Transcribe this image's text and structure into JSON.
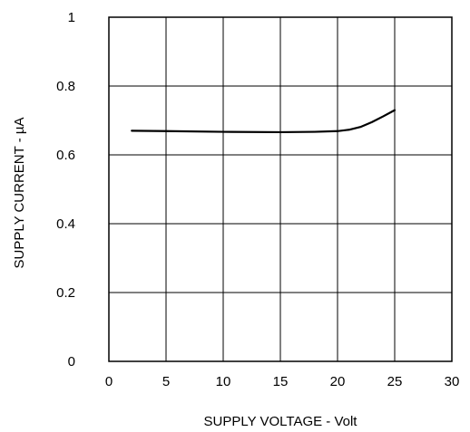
{
  "chart_data": {
    "type": "line",
    "title": "",
    "xlabel": "SUPPLY VOLTAGE - Volt",
    "ylabel": "SUPPLY CURRENT - µA",
    "xlim": [
      0,
      30
    ],
    "ylim": [
      0,
      1
    ],
    "xticks": [
      0,
      5,
      10,
      15,
      20,
      25,
      30
    ],
    "yticks": [
      0,
      0.2,
      0.4,
      0.6,
      0.8,
      1
    ],
    "xtick_labels": [
      "0",
      "5",
      "10",
      "15",
      "20",
      "25",
      "30"
    ],
    "ytick_labels": [
      "0",
      "0.2",
      "0.4",
      "0.6",
      "0.8",
      "1"
    ],
    "grid": true,
    "line_color": "#000000",
    "series": [
      {
        "x": [
          2,
          5,
          10,
          15,
          18,
          20,
          21,
          22,
          23,
          24,
          25
        ],
        "y": [
          0.67,
          0.669,
          0.667,
          0.666,
          0.667,
          0.669,
          0.673,
          0.681,
          0.695,
          0.712,
          0.73
        ]
      }
    ]
  }
}
